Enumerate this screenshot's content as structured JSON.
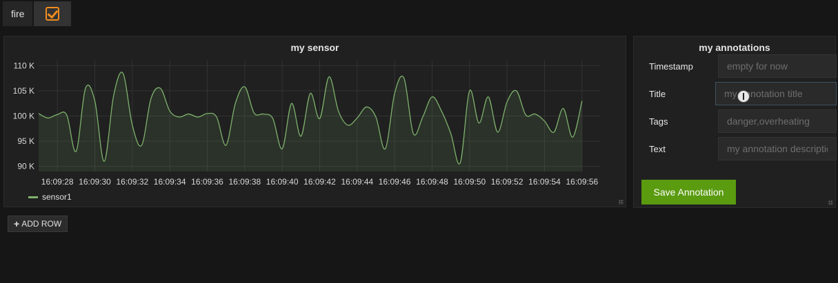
{
  "topbar": {
    "dashboard_name": "fire",
    "icon": "checkbox-edit-icon",
    "accent": "#f28b1e"
  },
  "chart_panel": {
    "title": "my sensor"
  },
  "chart_data": {
    "type": "area",
    "title": "my sensor",
    "xlabel": "",
    "ylabel": "",
    "ylim": [
      89,
      111
    ],
    "y_ticks": [
      "90 K",
      "95 K",
      "100 K",
      "105 K",
      "110 K"
    ],
    "y_tick_values": [
      90000,
      95000,
      100000,
      105000,
      110000
    ],
    "x_ticks": [
      "16:09:28",
      "16:09:30",
      "16:09:32",
      "16:09:34",
      "16:09:36",
      "16:09:38",
      "16:09:40",
      "16:09:42",
      "16:09:44",
      "16:09:46",
      "16:09:48",
      "16:09:50",
      "16:09:52",
      "16:09:54",
      "16:09:56"
    ],
    "x_range_seconds": [
      0,
      30
    ],
    "grid": true,
    "legend_placement": "bottom-left",
    "series": [
      {
        "name": "sensor1",
        "color": "#7eb26d",
        "x": [
          0,
          0.5,
          1,
          1.5,
          2,
          2.5,
          3,
          3.5,
          4,
          4.5,
          5,
          5.5,
          6,
          6.5,
          7,
          7.5,
          8,
          8.5,
          9,
          9.5,
          10,
          10.5,
          11,
          11.5,
          12,
          12.5,
          13,
          13.5,
          14,
          14.5,
          15,
          15.5,
          16,
          16.5,
          17,
          17.5,
          18,
          18.5,
          19,
          19.5,
          20,
          20.5,
          21,
          21.5,
          22,
          22.5,
          23,
          23.5,
          24,
          24.5,
          25,
          25.5,
          26,
          26.5,
          27,
          27.5,
          28,
          28.5,
          29
        ],
        "values": [
          100500,
          99600,
          100300,
          100200,
          93000,
          105500,
          103000,
          91000,
          104000,
          108500,
          98200,
          94200,
          103500,
          105500,
          101000,
          99800,
          100400,
          99800,
          100500,
          99800,
          94200,
          102500,
          105800,
          100600,
          100400,
          99500,
          93500,
          102500,
          96000,
          104500,
          99500,
          107800,
          101000,
          98200,
          99600,
          101800,
          99800,
          93500,
          104500,
          107500,
          96500,
          99800,
          103800,
          101000,
          96500,
          90700,
          105000,
          98600,
          103800,
          96800,
          102800,
          105000,
          100200,
          100400,
          99000,
          96800,
          101500,
          95800,
          103000
        ]
      }
    ]
  },
  "legend": {
    "series_name": "sensor1"
  },
  "anno_panel": {
    "title": "my annotations",
    "fields": {
      "timestamp_label": "Timestamp",
      "timestamp_placeholder": "empty for now",
      "title_label": "Title",
      "title_placeholder": "my annotation title",
      "tags_label": "Tags",
      "tags_placeholder": "danger,overheating",
      "text_label": "Text",
      "text_placeholder": "my annotation description"
    },
    "save_label": "Save Annotation",
    "save_color": "#5a9b10"
  },
  "add_row": {
    "label": "ADD ROW",
    "icon": "plus-icon"
  }
}
